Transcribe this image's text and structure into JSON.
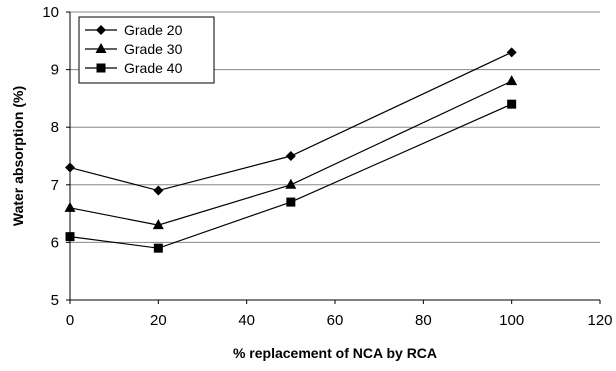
{
  "chart_data": {
    "type": "line",
    "x": [
      0,
      20,
      50,
      100
    ],
    "series": [
      {
        "name": "Grade 20",
        "marker": "diamond",
        "values": [
          7.3,
          6.9,
          7.5,
          9.3
        ]
      },
      {
        "name": "Grade 30",
        "marker": "triangle",
        "values": [
          6.6,
          6.3,
          7.0,
          8.8
        ]
      },
      {
        "name": "Grade 40",
        "marker": "square",
        "values": [
          6.1,
          5.9,
          6.7,
          8.4
        ]
      }
    ],
    "xlabel": "% replacement of NCA by RCA",
    "ylabel": "Water absorption (%)",
    "xlim": [
      0,
      120
    ],
    "ylim": [
      5,
      10
    ],
    "xticks": [
      "0",
      "20",
      "40",
      "60",
      "80",
      "100",
      "120"
    ],
    "yticks": [
      "5",
      "6",
      "7",
      "8",
      "9",
      "10"
    ],
    "grid": "horizontal",
    "legend": "top-left",
    "colors": {
      "line": "#000000",
      "grid": "#888888",
      "axis": "#000000"
    }
  }
}
